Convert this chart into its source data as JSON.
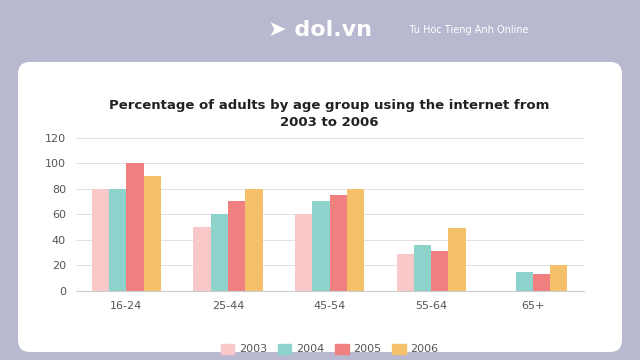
{
  "title": "Percentage of adults by age group using the internet from\n2003 to 2006",
  "categories": [
    "16-24",
    "25-44",
    "45-54",
    "55-64",
    "65+"
  ],
  "years": [
    "2003",
    "2004",
    "2005",
    "2006"
  ],
  "values": {
    "2003": [
      80,
      50,
      60,
      29,
      0
    ],
    "2004": [
      80,
      60,
      70,
      36,
      15
    ],
    "2005": [
      100,
      70,
      75,
      31,
      13
    ],
    "2006": [
      90,
      80,
      80,
      49,
      20
    ]
  },
  "colors": {
    "2003": "#f9c8c8",
    "2004": "#8dd3cc",
    "2005": "#f08080",
    "2006": "#f5c06a"
  },
  "ylim": [
    0,
    120
  ],
  "yticks": [
    0,
    20,
    40,
    60,
    80,
    100,
    120
  ],
  "background_color": "#b8b8d0",
  "card_color": "#ffffff",
  "title_fontsize": 9.5,
  "tick_fontsize": 8,
  "legend_fontsize": 8,
  "logo_text_main": "dol.vn",
  "logo_text_sub": "Tu Hoc Tieng Anh Online"
}
